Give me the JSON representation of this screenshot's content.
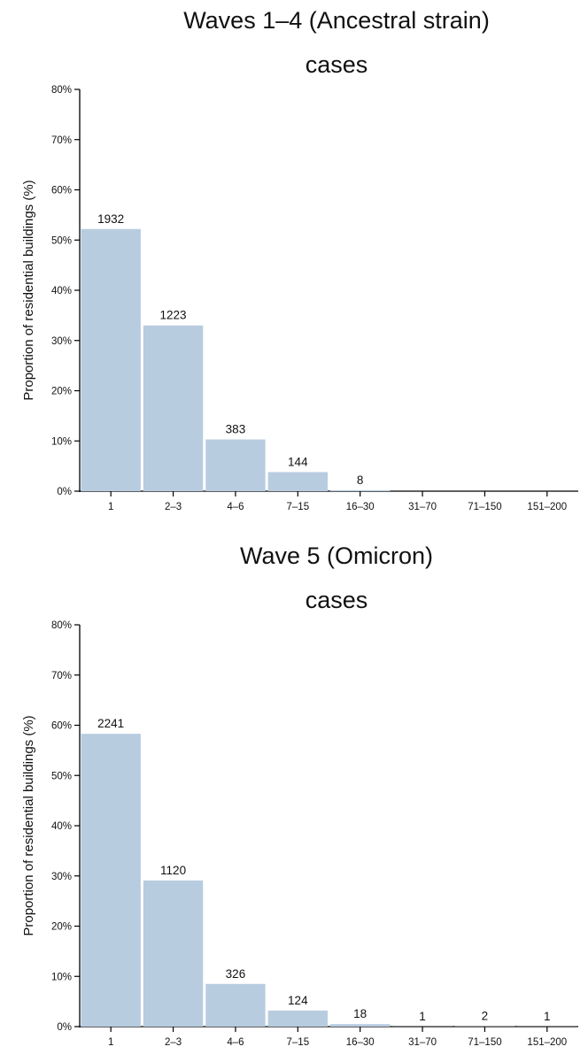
{
  "chart_data": [
    {
      "type": "bar",
      "title": "Waves 1–4 (Ancestral strain)",
      "subtitle": "cases",
      "xlabel": "",
      "ylabel": "Proportion of residential buildings (%)",
      "categories": [
        "1",
        "2–3",
        "4–6",
        "7–15",
        "16–30",
        "31–70",
        "71–150",
        "151–200"
      ],
      "values": [
        52.2,
        33.0,
        10.3,
        3.8,
        0.2,
        0,
        0,
        0
      ],
      "labels": [
        "1932",
        "1223",
        "383",
        "144",
        "8",
        "",
        "",
        ""
      ],
      "ylim": [
        0,
        80
      ],
      "yticks": [
        "0%",
        "10%",
        "20%",
        "30%",
        "40%",
        "50%",
        "60%",
        "70%",
        "80%"
      ],
      "bar_color": "#b8cce0",
      "grid": false
    },
    {
      "type": "bar",
      "title": "Wave 5 (Omicron)",
      "subtitle": "cases",
      "xlabel": "",
      "ylabel": "Proportion of residential buildings (%)",
      "categories": [
        "1",
        "2–3",
        "4–6",
        "7–15",
        "16–30",
        "31–70",
        "71–150",
        "151–200"
      ],
      "values": [
        58.3,
        29.1,
        8.5,
        3.2,
        0.5,
        0.03,
        0.05,
        0.03
      ],
      "labels": [
        "2241",
        "1120",
        "326",
        "124",
        "18",
        "1",
        "2",
        "1"
      ],
      "ylim": [
        0,
        80
      ],
      "yticks": [
        "0%",
        "10%",
        "20%",
        "30%",
        "40%",
        "50%",
        "60%",
        "70%",
        "80%"
      ],
      "bar_color": "#b8cce0",
      "grid": false
    }
  ]
}
